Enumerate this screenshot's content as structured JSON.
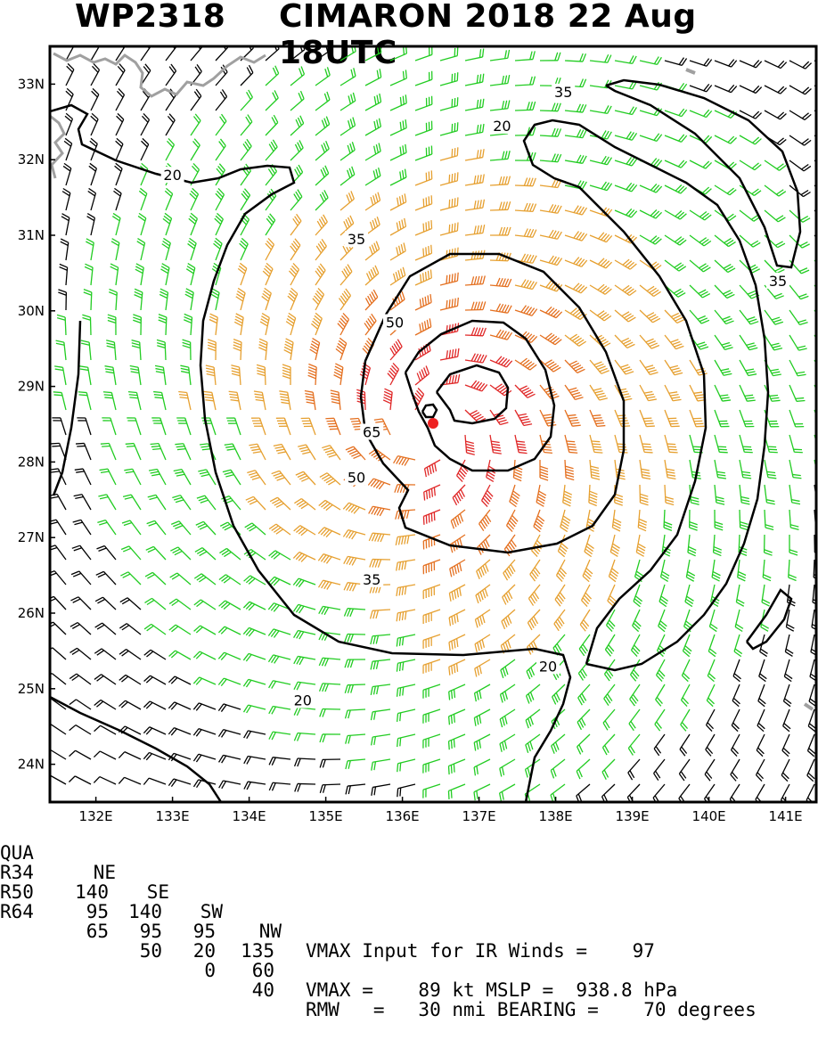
{
  "title": {
    "storm_id": "WP2318",
    "storm_info": "CIMARON 2018 22 Aug 18UTC"
  },
  "map": {
    "lon_range": [
      131.4,
      141.4
    ],
    "lat_range": [
      23.5,
      33.5
    ],
    "lon_ticks": [
      "132E",
      "133E",
      "134E",
      "135E",
      "136E",
      "137E",
      "138E",
      "139E",
      "140E",
      "141E"
    ],
    "lat_ticks": [
      "24N",
      "25N",
      "26N",
      "27N",
      "28N",
      "29N",
      "30N",
      "31N",
      "32N",
      "33N"
    ],
    "center": {
      "lon": 136.4,
      "lat": 28.45
    },
    "contour_labels": [
      {
        "text": "20",
        "lon": 133.0,
        "lat": 31.8
      },
      {
        "text": "20",
        "lon": 137.3,
        "lat": 32.45
      },
      {
        "text": "35",
        "lon": 138.1,
        "lat": 32.9
      },
      {
        "text": "35",
        "lon": 140.9,
        "lat": 30.4
      },
      {
        "text": "35",
        "lon": 135.4,
        "lat": 30.95
      },
      {
        "text": "50",
        "lon": 135.9,
        "lat": 29.85
      },
      {
        "text": "65",
        "lon": 135.6,
        "lat": 28.4
      },
      {
        "text": "50",
        "lon": 135.4,
        "lat": 27.8
      },
      {
        "text": "35",
        "lon": 135.6,
        "lat": 26.45
      },
      {
        "text": "20",
        "lon": 134.7,
        "lat": 24.85
      },
      {
        "text": "20",
        "lon": 137.9,
        "lat": 25.3
      }
    ],
    "colors": {
      "green": "#22cc22",
      "orange": "#e6a030",
      "dark_orange": "#e47020",
      "red": "#e02828",
      "black": "#000000",
      "coast": "#a0a0a0",
      "center_marker": "#ee2222"
    }
  },
  "footer": {
    "headers": [
      "QUA",
      "NE",
      "SE",
      "SW",
      "NW"
    ],
    "rows": [
      {
        "label": "R34",
        "values": [
          "140",
          "140",
          "95",
          "135"
        ]
      },
      {
        "label": "R50",
        "values": [
          "95",
          "95",
          "20",
          "60"
        ]
      },
      {
        "label": "R64",
        "values": [
          "65",
          "50",
          "0",
          "40"
        ]
      }
    ],
    "line1": "VMAX Input for IR Winds =    97",
    "line3": "VMAX =    89 kt MSLP =  938.8 hPa",
    "line4": "RMW   =   30 nmi BEARING =    70 degrees"
  }
}
